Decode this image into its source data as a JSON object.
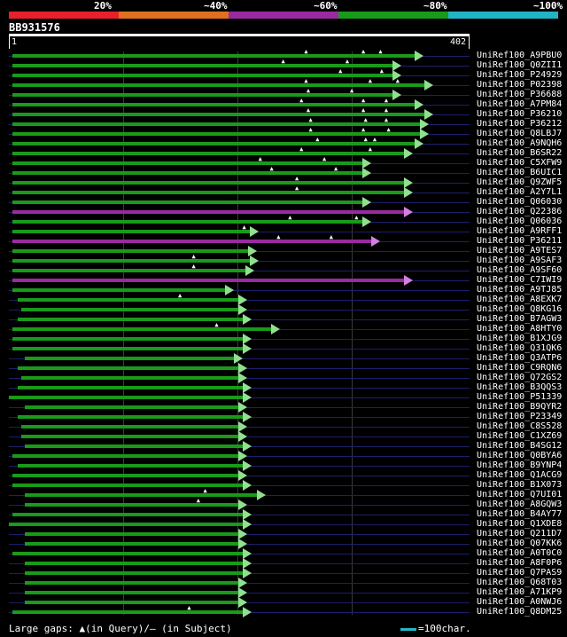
{
  "legend": [
    {
      "label": "20%",
      "color": "#e8202c"
    },
    {
      "label": "~40%",
      "color": "#e07020"
    },
    {
      "label": "~60%",
      "color": "#9a2aa0"
    },
    {
      "label": "~80%",
      "color": "#1a9a1a"
    },
    {
      "label": "~100%",
      "color": "#20b4c4"
    }
  ],
  "query": {
    "id": "BB931576",
    "start": "1",
    "end": "402",
    "length": 402
  },
  "colors": {
    "green": "#1a9a1a",
    "purple": "#9a2aa0",
    "arrow": "#90e090",
    "arrow_purple": "#d080e0",
    "bg": "#000000"
  },
  "hits": [
    {
      "name": "UniRef100_A9PBU0",
      "s": 3,
      "e": 356,
      "c": "green",
      "g": [
        260,
        310,
        325
      ]
    },
    {
      "name": "UniRef100_Q0ZII1",
      "s": 3,
      "e": 336,
      "c": "green",
      "g": [
        240,
        296
      ]
    },
    {
      "name": "UniRef100_P24929",
      "s": 3,
      "e": 336,
      "c": "green",
      "g": [
        290,
        326
      ]
    },
    {
      "name": "UniRef100_P02398",
      "s": 3,
      "e": 364,
      "c": "green",
      "g": [
        260,
        316,
        340
      ]
    },
    {
      "name": "UniRef100_P36688",
      "s": 3,
      "e": 336,
      "c": "green",
      "g": [
        262,
        300
      ]
    },
    {
      "name": "UniRef100_A7PM84",
      "s": 3,
      "e": 356,
      "c": "green",
      "g": [
        256,
        310,
        330
      ]
    },
    {
      "name": "UniRef100_P36210",
      "s": 3,
      "e": 364,
      "c": "green",
      "g": [
        262,
        310,
        330
      ]
    },
    {
      "name": "UniRef100_P36212",
      "s": 3,
      "e": 360,
      "c": "green",
      "g": [
        264,
        312,
        330
      ]
    },
    {
      "name": "UniRef100_Q8LBJ7",
      "s": 3,
      "e": 360,
      "c": "green",
      "g": [
        264,
        310,
        332
      ]
    },
    {
      "name": "UniRef100_A9NQH6",
      "s": 3,
      "e": 356,
      "c": "green",
      "g": [
        270,
        312,
        320
      ]
    },
    {
      "name": "UniRef100_B6SR22",
      "s": 3,
      "e": 346,
      "c": "green",
      "g": [
        256,
        316
      ]
    },
    {
      "name": "UniRef100_C5XFW9",
      "s": 3,
      "e": 310,
      "c": "green",
      "g": [
        220,
        276
      ]
    },
    {
      "name": "UniRef100_B6UIC1",
      "s": 3,
      "e": 310,
      "c": "green",
      "g": [
        230,
        286
      ]
    },
    {
      "name": "UniRef100_Q9ZWF5",
      "s": 3,
      "e": 346,
      "c": "green",
      "g": [
        252
      ]
    },
    {
      "name": "UniRef100_A2Y7L1",
      "s": 3,
      "e": 346,
      "c": "green",
      "g": [
        252
      ]
    },
    {
      "name": "UniRef100_Q06030",
      "s": 3,
      "e": 310,
      "c": "green",
      "g": []
    },
    {
      "name": "UniRef100_Q22386",
      "s": 3,
      "e": 346,
      "c": "purple",
      "g": []
    },
    {
      "name": "UniRef100_Q06036",
      "s": 3,
      "e": 310,
      "c": "green",
      "g": [
        246,
        304
      ]
    },
    {
      "name": "UniRef100_A9RFF1",
      "s": 3,
      "e": 212,
      "c": "green",
      "g": [
        206
      ]
    },
    {
      "name": "UniRef100_P36211",
      "s": 3,
      "e": 318,
      "c": "purple",
      "g": [
        236,
        282
      ]
    },
    {
      "name": "UniRef100_A9TES7",
      "s": 3,
      "e": 210,
      "c": "green",
      "g": []
    },
    {
      "name": "UniRef100_A9SAF3",
      "s": 3,
      "e": 212,
      "c": "green",
      "g": [
        162
      ]
    },
    {
      "name": "UniRef100_A9SF60",
      "s": 3,
      "e": 208,
      "c": "green",
      "g": [
        162
      ]
    },
    {
      "name": "UniRef100_C7IWI9",
      "s": 3,
      "e": 346,
      "c": "purple",
      "g": []
    },
    {
      "name": "UniRef100_A9TJ85",
      "s": 3,
      "e": 190,
      "c": "green",
      "g": []
    },
    {
      "name": "UniRef100_A8EXK7",
      "s": 8,
      "e": 202,
      "c": "green",
      "g": [
        150
      ]
    },
    {
      "name": "UniRef100_Q8KG16",
      "s": 11,
      "e": 202,
      "c": "green",
      "g": []
    },
    {
      "name": "UniRef100_B7AGW3",
      "s": 8,
      "e": 206,
      "c": "green",
      "g": []
    },
    {
      "name": "UniRef100_A8HTY0",
      "s": 3,
      "e": 230,
      "c": "green",
      "g": [
        182
      ]
    },
    {
      "name": "UniRef100_B1XJG9",
      "s": 3,
      "e": 206,
      "c": "green",
      "g": []
    },
    {
      "name": "UniRef100_Q31QK6",
      "s": 3,
      "e": 206,
      "c": "green",
      "g": []
    },
    {
      "name": "UniRef100_Q3ATP6",
      "s": 14,
      "e": 198,
      "c": "green",
      "g": []
    },
    {
      "name": "UniRef100_C9RQN6",
      "s": 8,
      "e": 202,
      "c": "green",
      "g": []
    },
    {
      "name": "UniRef100_Q72GS2",
      "s": 11,
      "e": 202,
      "c": "green",
      "g": []
    },
    {
      "name": "UniRef100_B3QQS3",
      "s": 8,
      "e": 206,
      "c": "green",
      "g": []
    },
    {
      "name": "UniRef100_P51339",
      "s": 0,
      "e": 206,
      "c": "green",
      "g": []
    },
    {
      "name": "UniRef100_B9QYR2",
      "s": 14,
      "e": 202,
      "c": "green",
      "g": []
    },
    {
      "name": "UniRef100_P23349",
      "s": 8,
      "e": 206,
      "c": "green",
      "g": []
    },
    {
      "name": "UniRef100_C8S528",
      "s": 11,
      "e": 202,
      "c": "green",
      "g": []
    },
    {
      "name": "UniRef100_C1XZ69",
      "s": 11,
      "e": 202,
      "c": "green",
      "g": []
    },
    {
      "name": "UniRef100_B4SG12",
      "s": 14,
      "e": 206,
      "c": "green",
      "g": []
    },
    {
      "name": "UniRef100_Q0BYA6",
      "s": 3,
      "e": 202,
      "c": "green",
      "g": []
    },
    {
      "name": "UniRef100_B9YNP4",
      "s": 8,
      "e": 206,
      "c": "green",
      "g": []
    },
    {
      "name": "UniRef100_Q1ACG9",
      "s": 3,
      "e": 202,
      "c": "green",
      "g": []
    },
    {
      "name": "UniRef100_B1X073",
      "s": 3,
      "e": 206,
      "c": "green",
      "g": []
    },
    {
      "name": "UniRef100_Q7UI01",
      "s": 14,
      "e": 218,
      "c": "green",
      "g": [
        172
      ]
    },
    {
      "name": "UniRef100_A8GQW3",
      "s": 14,
      "e": 202,
      "c": "green",
      "g": [
        166
      ]
    },
    {
      "name": "UniRef100_B4AY77",
      "s": 3,
      "e": 206,
      "c": "green",
      "g": []
    },
    {
      "name": "UniRef100_Q1XDE8",
      "s": 0,
      "e": 206,
      "c": "green",
      "g": []
    },
    {
      "name": "UniRef100_Q211D7",
      "s": 14,
      "e": 202,
      "c": "green",
      "g": []
    },
    {
      "name": "UniRef100_Q07KK6",
      "s": 14,
      "e": 202,
      "c": "green",
      "g": []
    },
    {
      "name": "UniRef100_A0T0C0",
      "s": 3,
      "e": 206,
      "c": "green",
      "g": []
    },
    {
      "name": "UniRef100_A8F0P6",
      "s": 14,
      "e": 206,
      "c": "green",
      "g": []
    },
    {
      "name": "UniRef100_Q7PAS9",
      "s": 14,
      "e": 206,
      "c": "green",
      "g": []
    },
    {
      "name": "UniRef100_Q68T03",
      "s": 14,
      "e": 202,
      "c": "green",
      "g": []
    },
    {
      "name": "UniRef100_A71KP9",
      "s": 14,
      "e": 202,
      "c": "green",
      "g": []
    },
    {
      "name": "UniRef100_A0NWJ6",
      "s": 14,
      "e": 202,
      "c": "green",
      "g": []
    },
    {
      "name": "UniRef100_Q8DM25",
      "s": 3,
      "e": 206,
      "c": "green",
      "g": [
        158
      ]
    }
  ],
  "footer": {
    "text": "Large gaps: ▲(in Query)/– (in Subject)"
  },
  "scale": {
    "text": "=100char."
  }
}
